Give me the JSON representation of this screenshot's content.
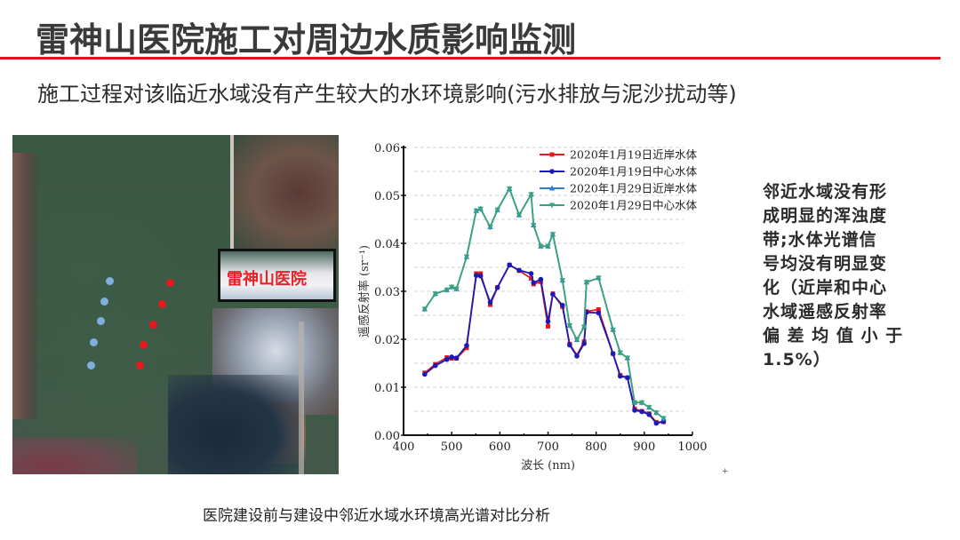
{
  "slide": {
    "title": "雷神山医院施工对周边水质影响监测",
    "subtitle": "施工过程对该临近水域没有产生较大的水环境影响(污水排放与泥沙扰动等)",
    "accent_color": "#d7191e",
    "caption": "医院建设前与建设中邻近水域水环境高光谱对比分析",
    "plus_mark": "+"
  },
  "satellite_image": {
    "label": "雷神山医院",
    "label_color": "#e8212a",
    "center_points_color": "#7fb0dd",
    "near_shore_points_color": "#e41a1c",
    "center_points": [
      [
        123,
        316
      ],
      [
        117,
        339
      ],
      [
        113,
        361
      ],
      [
        105,
        385
      ],
      [
        102,
        411
      ]
    ],
    "near_shore_points": [
      [
        191,
        318
      ],
      [
        182,
        342
      ],
      [
        172,
        365
      ],
      [
        161,
        388
      ],
      [
        157,
        411
      ]
    ]
  },
  "side_note": {
    "lines": [
      "邻近水域没有形",
      "成明显的浑浊度",
      "带;水体光谱信",
      "号均没有明显变",
      "化（近岸和中心",
      "水域遥感反射率",
      "偏 差 均 值 小 于",
      "1.5%）"
    ]
  },
  "chart_data": {
    "type": "line",
    "title": "",
    "xlabel": "波长 (nm)",
    "ylabel": "遥感反射率 (sr⁻¹)",
    "xlim": [
      400,
      1000
    ],
    "ylim": [
      0,
      0.06
    ],
    "xticks": [
      400,
      500,
      600,
      700,
      800,
      900,
      1000
    ],
    "yticks": [
      0.0,
      0.01,
      0.02,
      0.03,
      0.04,
      0.05,
      0.06
    ],
    "ytick_labels": [
      "0.00",
      "0.01",
      "0.02",
      "0.03",
      "0.04",
      "0.05",
      "0.06"
    ],
    "grid": "horizontal dashed",
    "legend_position": "upper right",
    "x": [
      444,
      466,
      490,
      500,
      510,
      531,
      551,
      560,
      580,
      595,
      620,
      640,
      665,
      670,
      685,
      700,
      710,
      730,
      745,
      760,
      775,
      780,
      805,
      835,
      850,
      865,
      880,
      895,
      910,
      925,
      940
    ],
    "series": [
      {
        "name": "2020年1月19日近岸水体",
        "color": "#e41a1c",
        "marker": "square",
        "values": [
          0.013,
          0.0148,
          0.0162,
          0.016,
          0.016,
          0.0182,
          0.0337,
          0.0337,
          0.0272,
          0.0308,
          0.0355,
          0.0343,
          0.0327,
          0.0315,
          0.032,
          0.0227,
          0.0295,
          0.0268,
          0.019,
          0.0167,
          0.0195,
          0.0258,
          0.0262,
          0.017,
          0.0125,
          0.012,
          0.0055,
          0.005,
          0.0045,
          0.0027,
          0.0028
        ]
      },
      {
        "name": "2020年1月19日中心水体",
        "color": "#1a1ab4",
        "marker": "circle",
        "values": [
          0.0127,
          0.0145,
          0.0158,
          0.0163,
          0.0161,
          0.0187,
          0.0333,
          0.0332,
          0.0277,
          0.0308,
          0.0355,
          0.0344,
          0.0337,
          0.0318,
          0.0325,
          0.0237,
          0.0294,
          0.0271,
          0.0188,
          0.0165,
          0.0191,
          0.0256,
          0.0255,
          0.017,
          0.0123,
          0.012,
          0.0052,
          0.0049,
          0.0043,
          0.0025,
          0.0028
        ]
      },
      {
        "name": "2020年1月29日近岸水体",
        "color": "#2f7fcf",
        "marker": "triangle-up",
        "values": [
          0.0263,
          0.0295,
          0.0303,
          0.0309,
          0.0305,
          0.0372,
          0.0468,
          0.0472,
          0.0434,
          0.047,
          0.0514,
          0.0459,
          0.0502,
          0.0438,
          0.0394,
          0.0394,
          0.0419,
          0.0323,
          0.0229,
          0.0199,
          0.0226,
          0.0319,
          0.0328,
          0.022,
          0.0172,
          0.0161,
          0.0068,
          0.0068,
          0.0058,
          0.0047,
          0.0035
        ]
      },
      {
        "name": "2020年1月29日中心水体",
        "color": "#3aa37a",
        "marker": "triangle-down",
        "values": [
          0.0263,
          0.0295,
          0.0303,
          0.0309,
          0.0305,
          0.0372,
          0.0468,
          0.0472,
          0.0434,
          0.047,
          0.0514,
          0.0459,
          0.0502,
          0.0438,
          0.0394,
          0.0394,
          0.0419,
          0.0323,
          0.0229,
          0.0199,
          0.0226,
          0.0319,
          0.0328,
          0.022,
          0.0172,
          0.0161,
          0.0068,
          0.0068,
          0.0058,
          0.0047,
          0.0035
        ]
      }
    ]
  }
}
